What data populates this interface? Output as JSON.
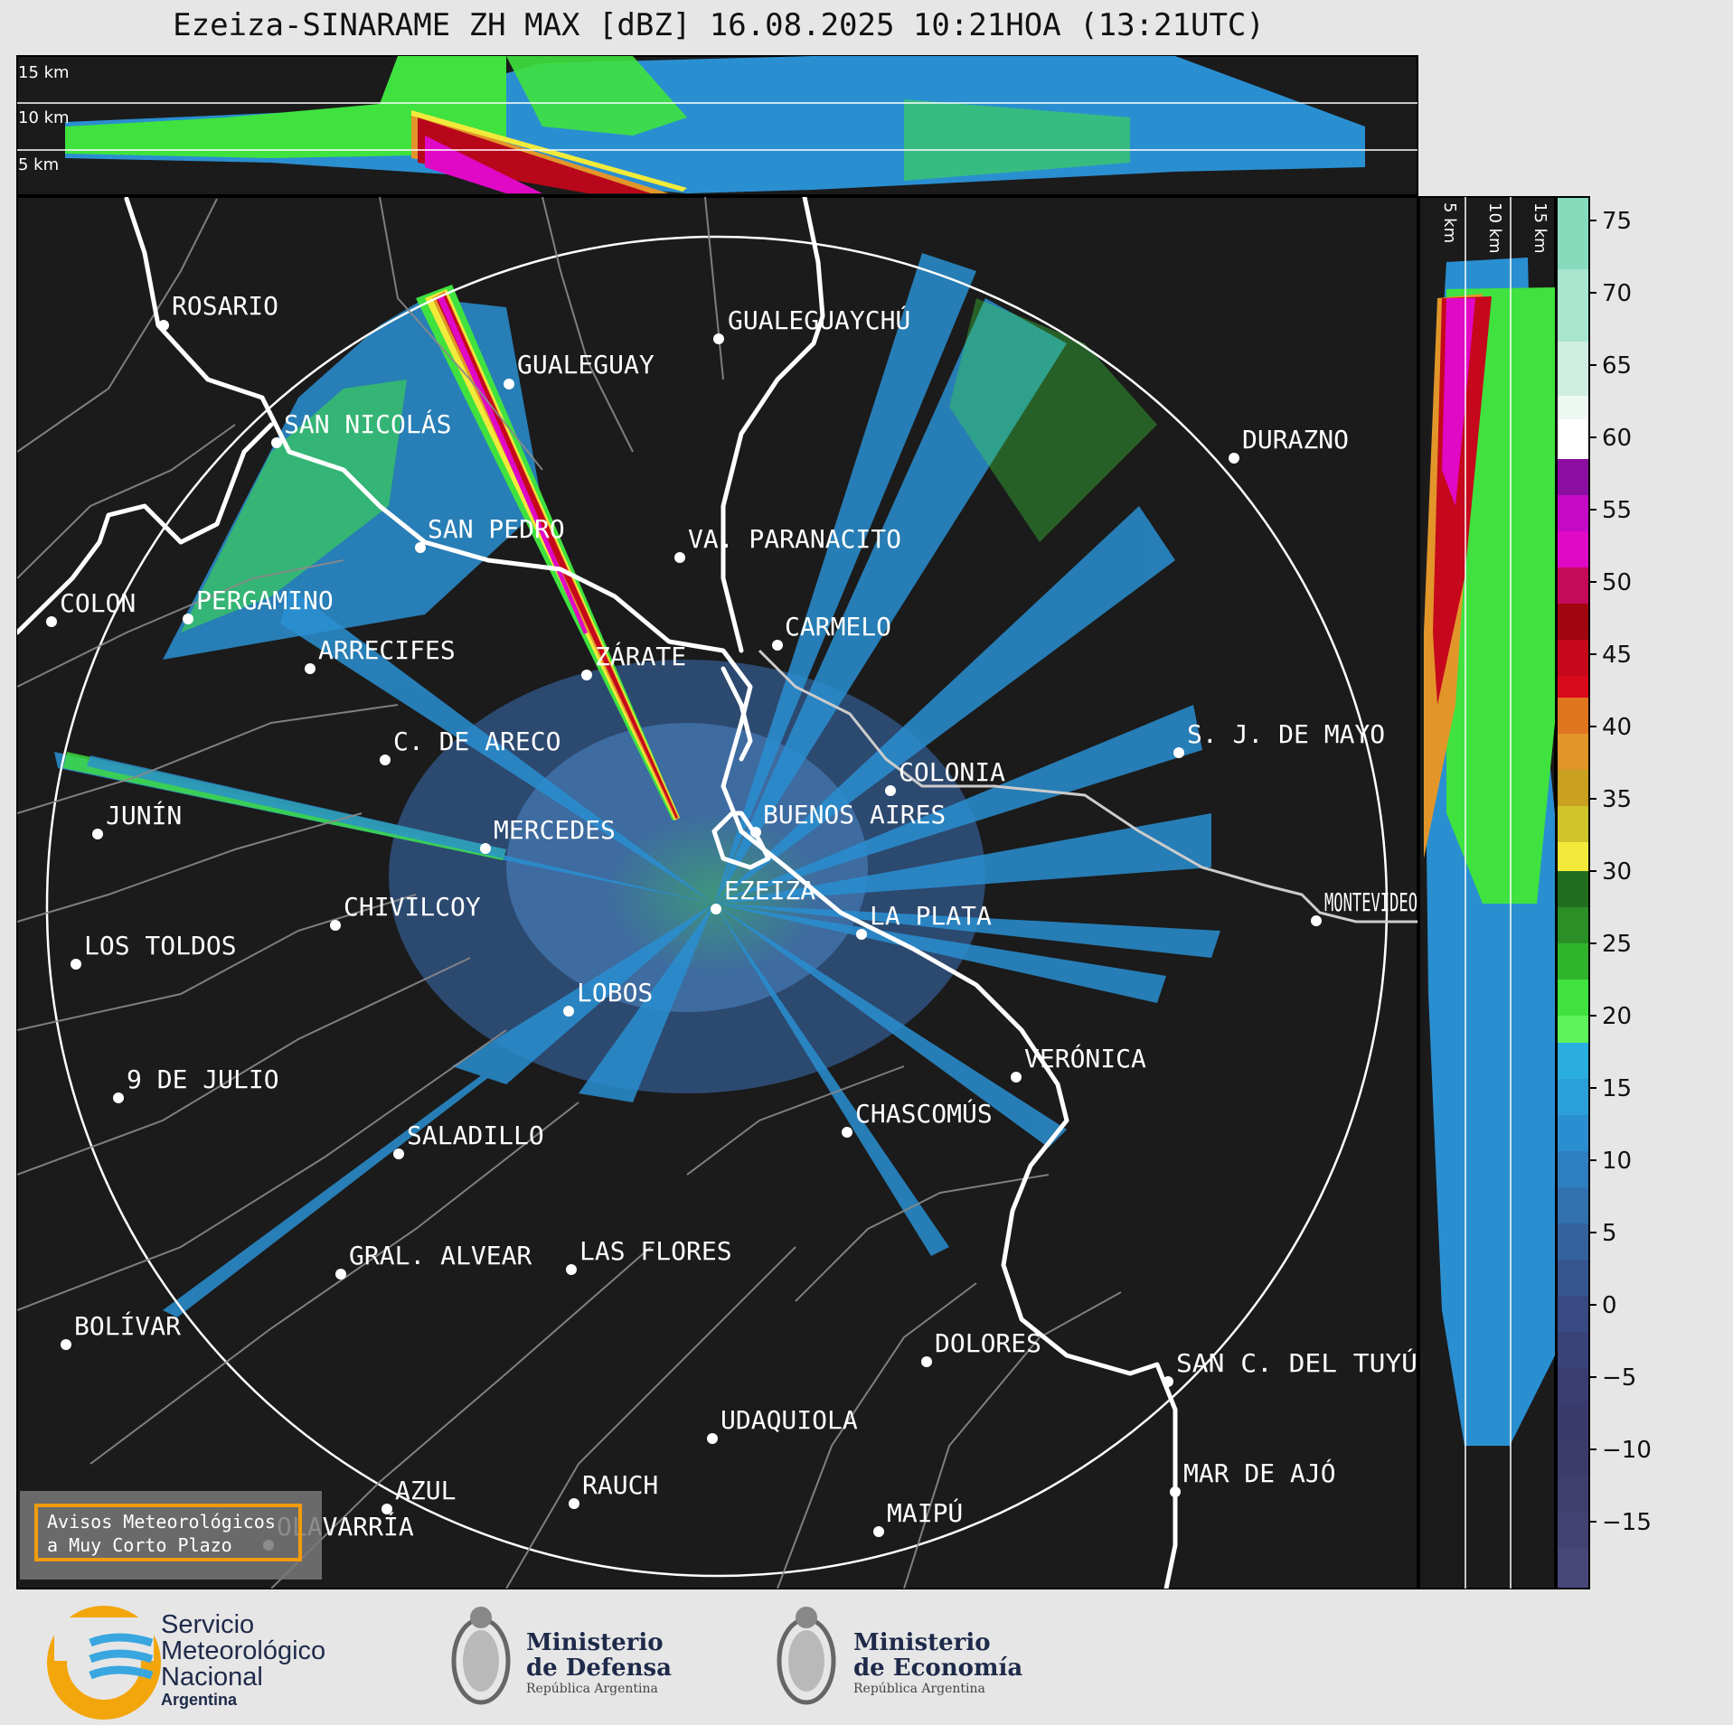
{
  "title": "Ezeiza-SINARAME ZH MAX [dBZ] 16.08.2025 10:21HOA (13:21UTC)",
  "height_labels": {
    "top": [
      "15 km",
      "10 km",
      "5 km"
    ],
    "side": [
      "5 km",
      "10 km",
      "15 km"
    ]
  },
  "colorbar": {
    "ticks": [
      "75",
      "70",
      "65",
      "60",
      "55",
      "50",
      "45",
      "40",
      "35",
      "30",
      "25",
      "20",
      "15",
      "10",
      "5",
      "0",
      "−5",
      "−10",
      "−15"
    ],
    "colors": {
      "blue_low": "#2b3f77",
      "blue": "#2a8fd1",
      "green": "#3fe23f",
      "yellow": "#f2ea3b",
      "orange": "#e2962a",
      "red": "#d8091a",
      "magenta": "#e009c6",
      "white": "#ffffff",
      "mint": "#86dbbd"
    }
  },
  "cities": [
    {
      "name": "ROSARIO"
    },
    {
      "name": "GUALEGUAYCHÚ"
    },
    {
      "name": "GUALEGUAY"
    },
    {
      "name": "SAN NICOLÁS"
    },
    {
      "name": "DURAZNO"
    },
    {
      "name": "SAN PEDRO"
    },
    {
      "name": "VA. PARANACITO"
    },
    {
      "name": "COLON"
    },
    {
      "name": "PERGAMINO"
    },
    {
      "name": "CARMELO"
    },
    {
      "name": "ARRECIFES"
    },
    {
      "name": "ZÁRATE"
    },
    {
      "name": "C. DE ARECO"
    },
    {
      "name": "S. J. DE MAYO"
    },
    {
      "name": "COLONIA"
    },
    {
      "name": "JUNÍN"
    },
    {
      "name": "BUENOS AIRES"
    },
    {
      "name": "MERCEDES"
    },
    {
      "name": "EZEIZA"
    },
    {
      "name": "MONTEVIDEO"
    },
    {
      "name": "CHIVILCOY"
    },
    {
      "name": "LA PLATA"
    },
    {
      "name": "LOS TOLDOS"
    },
    {
      "name": "LOBOS"
    },
    {
      "name": "VERÓNICA"
    },
    {
      "name": "9 DE JULIO"
    },
    {
      "name": "CHASCOMÚS"
    },
    {
      "name": "SALADILLO"
    },
    {
      "name": "GRAL. ALVEAR"
    },
    {
      "name": "LAS FLORES"
    },
    {
      "name": "BOLÍVAR"
    },
    {
      "name": "DOLORES"
    },
    {
      "name": "SAN C. DEL TUYÚ"
    },
    {
      "name": "UDAQUIOLA"
    },
    {
      "name": "MAR DE AJÓ"
    },
    {
      "name": "AZUL"
    },
    {
      "name": "OLAVARRÍA"
    },
    {
      "name": "RAUCH"
    },
    {
      "name": "MAIPÚ"
    }
  ],
  "aviso": {
    "line1": "Avisos Meteorológicos",
    "line2": "a Muy Corto Plazo"
  },
  "logos": {
    "smn": {
      "line1": "Servicio",
      "line2": "Meteorológico",
      "line3": "Nacional",
      "line4": "Argentina"
    },
    "defensa": {
      "line1": "Ministerio",
      "line2": "de Defensa",
      "line3": "República Argentina"
    },
    "economia": {
      "line1": "Ministerio",
      "line2": "de Economía",
      "line3": "República Argentina"
    }
  }
}
